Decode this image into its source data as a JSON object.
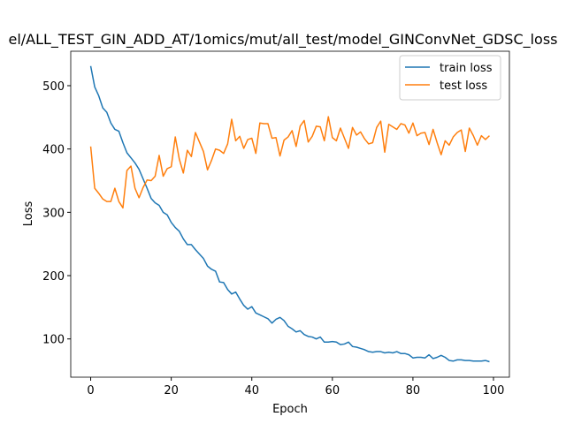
{
  "chart_data": {
    "type": "line",
    "title": "el/ALL_TEST_GIN_ADD_AT/1omics/mut/all_test/model_GINConvNet_GDSC_loss",
    "xlabel": "Epoch",
    "ylabel": "Loss",
    "x": [
      0,
      1,
      2,
      3,
      4,
      5,
      6,
      7,
      8,
      9,
      10,
      11,
      12,
      13,
      14,
      15,
      16,
      17,
      18,
      19,
      20,
      21,
      22,
      23,
      24,
      25,
      26,
      27,
      28,
      29,
      30,
      31,
      32,
      33,
      34,
      35,
      36,
      37,
      38,
      39,
      40,
      41,
      42,
      43,
      44,
      45,
      46,
      47,
      48,
      49,
      50,
      51,
      52,
      53,
      54,
      55,
      56,
      57,
      58,
      59,
      60,
      61,
      62,
      63,
      64,
      65,
      66,
      67,
      68,
      69,
      70,
      71,
      72,
      73,
      74,
      75,
      76,
      77,
      78,
      79,
      80,
      81,
      82,
      83,
      84,
      85,
      86,
      87,
      88,
      89,
      90,
      91,
      92,
      93,
      94,
      95,
      96,
      97,
      98,
      99
    ],
    "series": [
      {
        "name": "train loss",
        "color": "#1f77b4",
        "values": [
          531,
          498,
          484,
          465,
          458,
          441,
          431,
          428,
          410,
          394,
          386,
          378,
          368,
          353,
          338,
          322,
          315,
          311,
          300,
          296,
          284,
          276,
          270,
          258,
          249,
          249,
          241,
          234,
          227,
          215,
          210,
          207,
          190,
          189,
          178,
          171,
          174,
          163,
          153,
          147,
          151,
          141,
          138,
          135,
          132,
          125,
          131,
          134,
          129,
          120,
          116,
          111,
          113,
          107,
          104,
          103,
          100,
          103,
          95,
          95,
          96,
          95,
          91,
          92,
          95,
          88,
          87,
          85,
          83,
          80,
          79,
          80,
          80,
          78,
          79,
          78,
          80,
          77,
          77,
          75,
          70,
          71,
          71,
          70,
          75,
          69,
          71,
          74,
          71,
          66,
          65,
          67,
          67,
          66,
          66,
          65,
          65,
          65,
          66,
          64
        ]
      },
      {
        "name": "test loss",
        "color": "#ff7f0e",
        "values": [
          404,
          338,
          330,
          321,
          317,
          317,
          338,
          317,
          307,
          366,
          373,
          338,
          323,
          339,
          351,
          350,
          357,
          390,
          357,
          369,
          372,
          419,
          384,
          362,
          398,
          388,
          426,
          411,
          396,
          367,
          382,
          400,
          398,
          393,
          408,
          447,
          413,
          420,
          401,
          415,
          417,
          393,
          441,
          440,
          440,
          417,
          418,
          389,
          414,
          419,
          429,
          404,
          436,
          445,
          411,
          420,
          436,
          435,
          413,
          451,
          418,
          413,
          433,
          417,
          401,
          434,
          422,
          427,
          416,
          408,
          410,
          434,
          444,
          395,
          439,
          435,
          431,
          440,
          438,
          425,
          441,
          421,
          425,
          426,
          407,
          431,
          410,
          391,
          413,
          406,
          419,
          426,
          430,
          396,
          433,
          421,
          406,
          421,
          415,
          421
        ]
      }
    ],
    "xlim": [
      -4.95,
      103.95
    ],
    "xticks": [
      0,
      20,
      40,
      60,
      80,
      100
    ],
    "ylim": [
      39.6,
      554.4
    ],
    "yticks": [
      100,
      200,
      300,
      400,
      500
    ],
    "legend": "upper right"
  }
}
